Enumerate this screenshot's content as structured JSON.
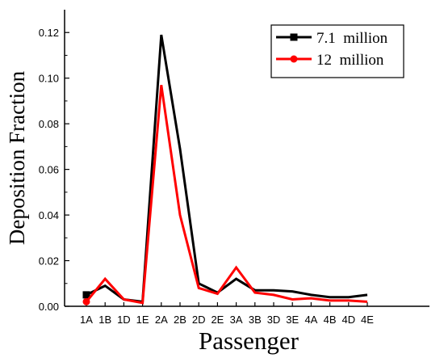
{
  "chart_data": {
    "type": "line",
    "title": "",
    "xlabel": "Passenger",
    "ylabel": "Deposition Fraction",
    "categories": [
      "1A",
      "1B",
      "1D",
      "1E",
      "2A",
      "2B",
      "2D",
      "2E",
      "3A",
      "3B",
      "3D",
      "3E",
      "4A",
      "4B",
      "4D",
      "4E"
    ],
    "ylim": [
      0,
      0.13
    ],
    "yticks": [
      "0.00",
      "0.02",
      "0.04",
      "0.06",
      "0.08",
      "0.10",
      "0.12"
    ],
    "legend_position": "top-right",
    "grid": false,
    "series": [
      {
        "name": "7.1  million",
        "color": "#000000",
        "marker": "square",
        "values": [
          0.005,
          0.009,
          0.003,
          0.002,
          0.119,
          0.069,
          0.01,
          0.006,
          0.012,
          0.007,
          0.007,
          0.0065,
          0.005,
          0.004,
          0.004,
          0.005
        ]
      },
      {
        "name": "12  million",
        "color": "#ff0000",
        "marker": "circle",
        "values": [
          0.002,
          0.012,
          0.003,
          0.0015,
          0.097,
          0.04,
          0.008,
          0.0055,
          0.017,
          0.006,
          0.005,
          0.003,
          0.0035,
          0.0025,
          0.0025,
          0.002
        ]
      }
    ]
  }
}
